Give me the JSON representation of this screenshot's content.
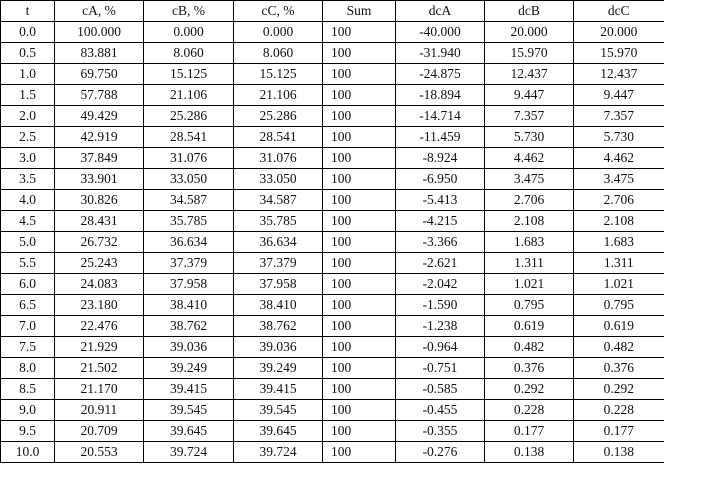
{
  "table": {
    "headers": [
      "t",
      "cA, %",
      "cB, %",
      "cC, %",
      "Sum",
      "dcA",
      "dcB",
      "dcC"
    ],
    "rows": [
      [
        "0.0",
        "100.000",
        "0.000",
        "0.000",
        "100",
        "-40.000",
        "20.000",
        "20.000"
      ],
      [
        "0.5",
        "83.881",
        "8.060",
        "8.060",
        "100",
        "-31.940",
        "15.970",
        "15.970"
      ],
      [
        "1.0",
        "69.750",
        "15.125",
        "15.125",
        "100",
        "-24.875",
        "12.437",
        "12.437"
      ],
      [
        "1.5",
        "57.788",
        "21.106",
        "21.106",
        "100",
        "-18.894",
        "9.447",
        "9.447"
      ],
      [
        "2.0",
        "49.429",
        "25.286",
        "25.286",
        "100",
        "-14.714",
        "7.357",
        "7.357"
      ],
      [
        "2.5",
        "42.919",
        "28.541",
        "28.541",
        "100",
        "-11.459",
        "5.730",
        "5.730"
      ],
      [
        "3.0",
        "37.849",
        "31.076",
        "31.076",
        "100",
        "-8.924",
        "4.462",
        "4.462"
      ],
      [
        "3.5",
        "33.901",
        "33.050",
        "33.050",
        "100",
        "-6.950",
        "3.475",
        "3.475"
      ],
      [
        "4.0",
        "30.826",
        "34.587",
        "34.587",
        "100",
        "-5.413",
        "2.706",
        "2.706"
      ],
      [
        "4.5",
        "28.431",
        "35.785",
        "35.785",
        "100",
        "-4.215",
        "2.108",
        "2.108"
      ],
      [
        "5.0",
        "26.732",
        "36.634",
        "36.634",
        "100",
        "-3.366",
        "1.683",
        "1.683"
      ],
      [
        "5.5",
        "25.243",
        "37.379",
        "37.379",
        "100",
        "-2.621",
        "1.311",
        "1.311"
      ],
      [
        "6.0",
        "24.083",
        "37.958",
        "37.958",
        "100",
        "-2.042",
        "1.021",
        "1.021"
      ],
      [
        "6.5",
        "23.180",
        "38.410",
        "38.410",
        "100",
        "-1.590",
        "0.795",
        "0.795"
      ],
      [
        "7.0",
        "22.476",
        "38.762",
        "38.762",
        "100",
        "-1.238",
        "0.619",
        "0.619"
      ],
      [
        "7.5",
        "21.929",
        "39.036",
        "39.036",
        "100",
        "-0.964",
        "0.482",
        "0.482"
      ],
      [
        "8.0",
        "21.502",
        "39.249",
        "39.249",
        "100",
        "-0.751",
        "0.376",
        "0.376"
      ],
      [
        "8.5",
        "21.170",
        "39.415",
        "39.415",
        "100",
        "-0.585",
        "0.292",
        "0.292"
      ],
      [
        "9.0",
        "20.911",
        "39.545",
        "39.545",
        "100",
        "-0.455",
        "0.228",
        "0.228"
      ],
      [
        "9.5",
        "20.709",
        "39.645",
        "39.645",
        "100",
        "-0.355",
        "0.177",
        "0.177"
      ],
      [
        "10.0",
        "20.553",
        "39.724",
        "39.724",
        "100",
        "-0.276",
        "0.138",
        "0.138"
      ]
    ]
  }
}
